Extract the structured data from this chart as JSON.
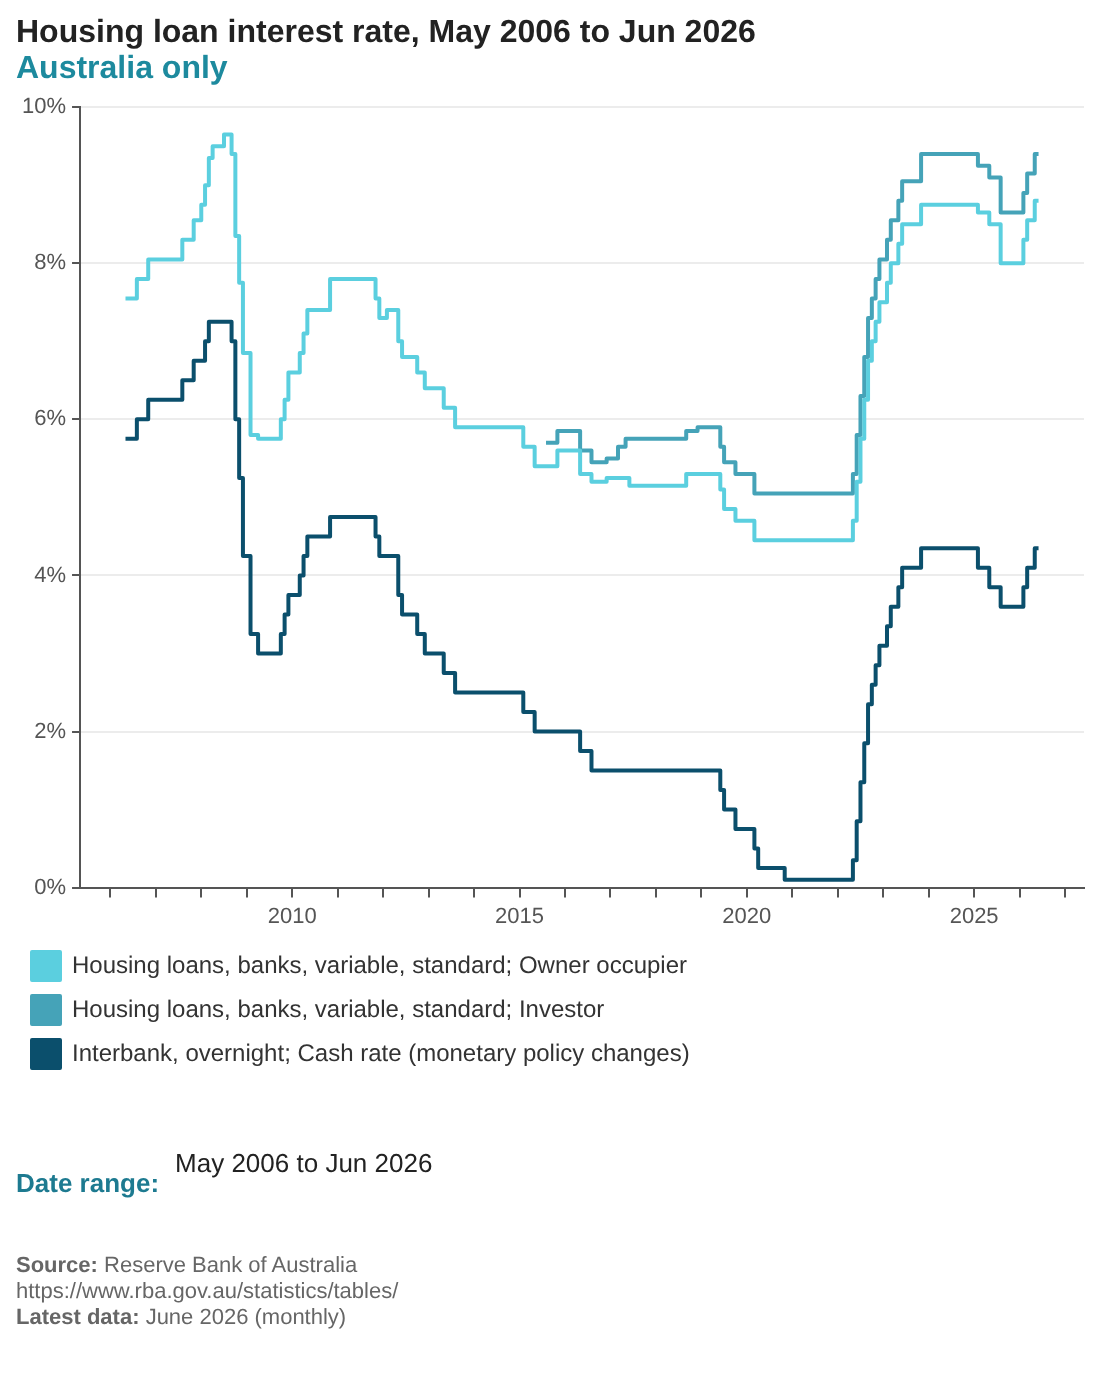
{
  "chart_data": {
    "type": "step",
    "title": "Housing loan interest rate, May 2006 to Jun 2026",
    "subtitle": "Australia only",
    "series": [
      {
        "name": "Housing loans, banks, variable, standard; Owner occupier",
        "color": "#5bcfdf",
        "x": [
          "2006-05",
          "2006-08",
          "2006-11",
          "2007-08",
          "2007-11",
          "2008-01",
          "2008-02",
          "2008-03",
          "2008-04",
          "2008-07",
          "2008-09",
          "2008-10",
          "2008-11",
          "2008-12",
          "2009-02",
          "2009-04",
          "2009-10",
          "2009-11",
          "2009-12",
          "2010-03",
          "2010-04",
          "2010-05",
          "2010-11",
          "2011-11",
          "2011-12",
          "2012-02",
          "2012-05",
          "2012-06",
          "2012-10",
          "2012-12",
          "2013-05",
          "2013-08",
          "2015-02",
          "2015-05",
          "2015-11",
          "2016-05",
          "2016-08",
          "2016-12",
          "2017-06",
          "2018-09",
          "2019-06",
          "2019-07",
          "2019-10",
          "2020-03",
          "2022-05",
          "2022-06",
          "2022-07",
          "2022-08",
          "2022-09",
          "2022-10",
          "2022-11",
          "2022-12",
          "2023-02",
          "2023-03",
          "2023-05",
          "2023-06",
          "2023-11",
          "2025-02",
          "2025-05",
          "2025-08",
          "2026-02",
          "2026-03",
          "2026-05",
          "2026-06"
        ],
        "values": [
          7.55,
          7.8,
          8.05,
          8.3,
          8.55,
          8.75,
          9.0,
          9.35,
          9.5,
          9.65,
          9.4,
          8.35,
          7.75,
          6.85,
          5.8,
          5.75,
          6.0,
          6.25,
          6.6,
          6.85,
          7.1,
          7.4,
          7.8,
          7.55,
          7.3,
          7.4,
          7.0,
          6.8,
          6.6,
          6.4,
          6.15,
          5.9,
          5.65,
          5.4,
          5.6,
          5.3,
          5.2,
          5.25,
          5.15,
          5.3,
          5.1,
          4.85,
          4.7,
          4.45,
          4.7,
          5.2,
          5.75,
          6.25,
          6.75,
          7.0,
          7.25,
          7.5,
          7.75,
          8.0,
          8.25,
          8.5,
          8.75,
          8.65,
          8.5,
          8.0,
          8.3,
          8.55,
          8.8,
          8.8
        ]
      },
      {
        "name": "Housing loans, banks, variable, standard; Investor",
        "color": "#45a3b8",
        "x": [
          "2015-08",
          "2015-11",
          "2016-05",
          "2016-08",
          "2016-12",
          "2017-03",
          "2017-05",
          "2018-09",
          "2018-12",
          "2019-06",
          "2019-07",
          "2019-10",
          "2020-03",
          "2022-05",
          "2022-06",
          "2022-07",
          "2022-08",
          "2022-09",
          "2022-10",
          "2022-11",
          "2022-12",
          "2023-02",
          "2023-03",
          "2023-05",
          "2023-06",
          "2023-11",
          "2025-02",
          "2025-05",
          "2025-08",
          "2026-02",
          "2026-03",
          "2026-05",
          "2026-06"
        ],
        "values": [
          5.7,
          5.85,
          5.6,
          5.45,
          5.5,
          5.65,
          5.75,
          5.85,
          5.9,
          5.65,
          5.45,
          5.3,
          5.05,
          5.3,
          5.8,
          6.3,
          6.8,
          7.3,
          7.55,
          7.8,
          8.05,
          8.3,
          8.55,
          8.8,
          9.05,
          9.4,
          9.25,
          9.1,
          8.65,
          8.9,
          9.15,
          9.4,
          9.4
        ]
      },
      {
        "name": "Interbank, overnight; Cash rate (monetary policy changes)",
        "color": "#0b4f6c",
        "x": [
          "2006-05",
          "2006-08",
          "2006-11",
          "2007-08",
          "2007-11",
          "2008-02",
          "2008-03",
          "2008-09",
          "2008-10",
          "2008-11",
          "2008-12",
          "2009-02",
          "2009-04",
          "2009-10",
          "2009-11",
          "2009-12",
          "2010-03",
          "2010-04",
          "2010-05",
          "2010-11",
          "2011-11",
          "2011-12",
          "2012-05",
          "2012-06",
          "2012-10",
          "2012-12",
          "2013-05",
          "2013-08",
          "2015-02",
          "2015-05",
          "2016-05",
          "2016-08",
          "2019-06",
          "2019-07",
          "2019-10",
          "2020-03",
          "2020-04",
          "2020-11",
          "2022-05",
          "2022-06",
          "2022-07",
          "2022-08",
          "2022-09",
          "2022-10",
          "2022-11",
          "2022-12",
          "2023-02",
          "2023-03",
          "2023-05",
          "2023-06",
          "2023-11",
          "2025-02",
          "2025-05",
          "2025-08",
          "2026-02",
          "2026-03",
          "2026-05",
          "2026-06"
        ],
        "values": [
          5.75,
          6.0,
          6.25,
          6.5,
          6.75,
          7.0,
          7.25,
          7.0,
          6.0,
          5.25,
          4.25,
          3.25,
          3.0,
          3.25,
          3.5,
          3.75,
          4.0,
          4.25,
          4.5,
          4.75,
          4.5,
          4.25,
          3.75,
          3.5,
          3.25,
          3.0,
          2.75,
          2.5,
          2.25,
          2.0,
          1.75,
          1.5,
          1.25,
          1.0,
          0.75,
          0.5,
          0.25,
          0.1,
          0.35,
          0.85,
          1.35,
          1.85,
          2.35,
          2.6,
          2.85,
          3.1,
          3.35,
          3.6,
          3.85,
          4.1,
          4.35,
          4.1,
          3.85,
          3.6,
          3.85,
          4.1,
          4.35,
          4.35
        ]
      }
    ],
    "xlim": [
      "2005-05",
      "2027-06"
    ],
    "xticks": [
      {
        "value": "2006",
        "label": null
      },
      {
        "value": "2007",
        "label": null
      },
      {
        "value": "2008",
        "label": null
      },
      {
        "value": "2009",
        "label": null
      },
      "2010",
      {
        "value": "2011",
        "label": null
      },
      {
        "value": "2012",
        "label": null
      },
      {
        "value": "2013",
        "label": null
      },
      {
        "value": "2014",
        "label": null
      },
      "2015",
      {
        "value": "2016",
        "label": null
      },
      {
        "value": "2017",
        "label": null
      },
      {
        "value": "2018",
        "label": null
      },
      {
        "value": "2019",
        "label": null
      },
      "2020",
      {
        "value": "2021",
        "label": null
      },
      {
        "value": "2022",
        "label": null
      },
      {
        "value": "2023",
        "label": null
      },
      {
        "value": "2024",
        "label": null
      },
      "2025",
      {
        "value": "2026",
        "label": null
      },
      {
        "value": "2027",
        "label": null
      }
    ],
    "ylim": [
      0,
      10
    ],
    "yticks": [
      {
        "value": 0,
        "label": "0%"
      },
      {
        "value": 2,
        "label": "2%"
      },
      {
        "value": 4,
        "label": "4%"
      },
      {
        "value": 6,
        "label": "6%"
      },
      {
        "value": 8,
        "label": "8%"
      },
      {
        "value": 10,
        "label": "10%"
      }
    ],
    "grid": "y",
    "legend": "bottom left",
    "annotations": [
      "Date range: May 2006 to Jun 2026",
      "Source: Reserve Bank of Australia",
      "https://www.rba.gov.au/statistics/tables/",
      "Latest data: June 2026 (monthly)"
    ]
  }
}
